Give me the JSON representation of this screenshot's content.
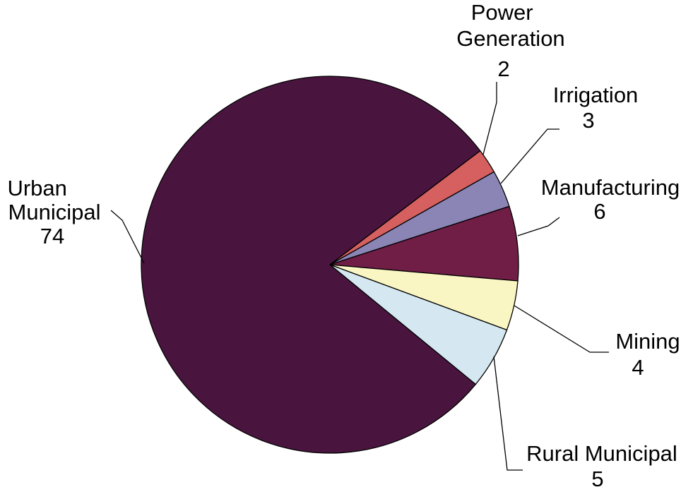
{
  "chart_data": {
    "type": "pie",
    "title": "",
    "slices": [
      {
        "label": "Power Generation",
        "value": 2,
        "value_label": "2",
        "color": "#D65F5F"
      },
      {
        "label": "Irrigation",
        "value": 3,
        "value_label": "3",
        "color": "#8A85B5"
      },
      {
        "label": "Manufacturing",
        "value": 6,
        "value_label": "6",
        "color": "#701E46"
      },
      {
        "label": "Mining",
        "value": 4,
        "value_label": "4",
        "color": "#FAF6C3"
      },
      {
        "label": "Rural Municipal",
        "value": 5,
        "value_label": "5",
        "color": "#D5E7F0"
      },
      {
        "label": "Urban Municipal",
        "value": 74,
        "value_label": "74",
        "color": "#49153F"
      }
    ]
  }
}
